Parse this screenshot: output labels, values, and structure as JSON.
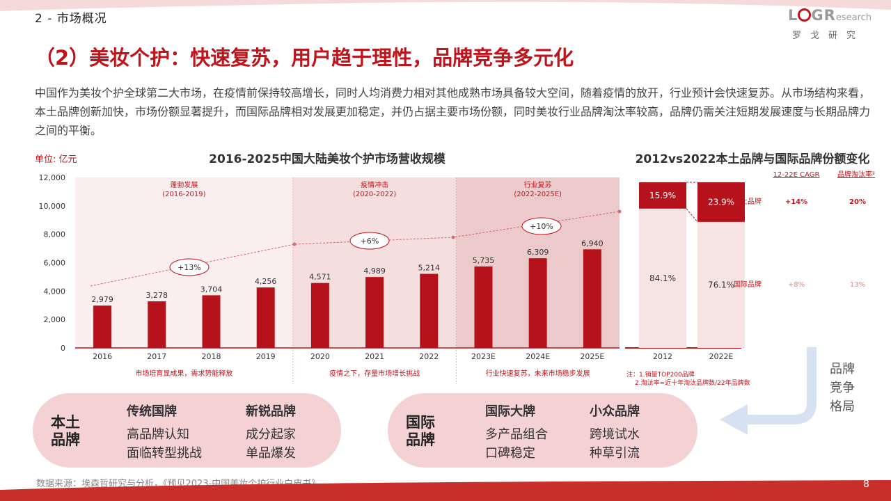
{
  "header": {
    "section": "2 - 市场概况",
    "logo_main_1": "L",
    "logo_main_2": "G",
    "logo_main_3": "R",
    "logo_sub": "esearch",
    "logo_cn": "罗戈研究"
  },
  "title": "（2）美妆个护：快速复苏，用户趋于理性，品牌竞争多元化",
  "intro": "中国作为美妆个护全球第二大市场，在疫情前保持较高增长，同时人均消费力相对其他成熟市场具备较大空间，随着疫情的放开，行业预计会快速复苏。从市场结构来看，本土品牌创新加快，市场份额显著提升，而国际品牌相对发展更加稳定，并仍占据主要市场份额，同时美妆行业品牌淘汰率较高，品牌仍需关注短期发展速度与长期品牌力之间的平衡。",
  "colors": {
    "accent": "#c0141c",
    "pill_bg": "#f4d2d3",
    "bar": "#b5121b",
    "band_light": "#fbeeee",
    "band_mid": "#f4dede",
    "band_dark": "#ecc9ca"
  },
  "chart_data": [
    {
      "type": "bar",
      "title": "2016-2025中国大陆美妆个护市场营收规模",
      "unit_label": "单位: 亿元",
      "categories": [
        "2016",
        "2017",
        "2018",
        "2019",
        "2020",
        "2021",
        "2022",
        "2023E",
        "2024E",
        "2025E"
      ],
      "values": [
        2979,
        3278,
        3704,
        4256,
        4571,
        4989,
        5214,
        5735,
        6309,
        6940
      ],
      "value_labels": [
        "2,979",
        "3,278",
        "3,704",
        "4,256",
        "4,571",
        "4,989",
        "5,214",
        "5,735",
        "6,309",
        "6,940"
      ],
      "yticks": [
        "0",
        "2,000",
        "4,000",
        "6,000",
        "8,000",
        "10,000",
        "12,000"
      ],
      "ylim": [
        0,
        12000
      ],
      "phases": [
        {
          "name": "蓬勃发展",
          "period": "(2016-2019)",
          "growth": "+13%",
          "caption": "市场培育显成果，需求势能释放"
        },
        {
          "name": "疫情冲击",
          "period": "(2020-2022)",
          "growth": "+6%",
          "caption": "疫情之下，存量市场增长挑战"
        },
        {
          "name": "行业复苏",
          "period": "(2022-2025E)",
          "growth": "+10%",
          "caption": "行业快速复苏，未来市场稳步发展"
        }
      ]
    },
    {
      "type": "bar",
      "stacked": true,
      "title": "2012vs2022本土品牌与国际品牌份额变化",
      "categories": [
        "2012",
        "2022E"
      ],
      "series": [
        {
          "name": "本土品牌",
          "values": [
            15.9,
            23.9
          ],
          "labels": [
            "15.9%",
            "23.9%"
          ]
        },
        {
          "name": "国际品牌",
          "values": [
            84.1,
            76.1
          ],
          "labels": [
            "84.1%",
            "76.1%"
          ]
        }
      ],
      "col_headers": [
        "12-22E CAGR",
        "品牌淘汰率²"
      ],
      "rows": [
        {
          "name": "本土品牌",
          "cagr": "+14%",
          "elim": "20%"
        },
        {
          "name": "国际品牌",
          "cagr": "+8%",
          "elim": "13%"
        }
      ]
    }
  ],
  "notes": [
    "注：1.销量TOP200品牌",
    "2.淘汰率=近十年淘汰品牌数/22年品牌数"
  ],
  "competition_label": [
    "品牌",
    "竞争",
    "格局"
  ],
  "domestic": {
    "head": [
      "本土",
      "品牌"
    ],
    "col1": {
      "title": "传统国牌",
      "items": [
        "高品牌认知",
        "面临转型挑战"
      ]
    },
    "col2": {
      "title": "新锐品牌",
      "items": [
        "成分起家",
        "单品爆发"
      ]
    }
  },
  "international": {
    "head": [
      "国际",
      "品牌"
    ],
    "col1": {
      "title": "国际大牌",
      "items": [
        "多产品组合",
        "口碑稳定"
      ]
    },
    "col2": {
      "title": "小众品牌",
      "items": [
        "跨境试水",
        "种草引流"
      ]
    }
  },
  "source": "数据来源：埃森哲研究与分析，《预见2023-中国美妆个护行业白皮书》",
  "page_number": "8"
}
